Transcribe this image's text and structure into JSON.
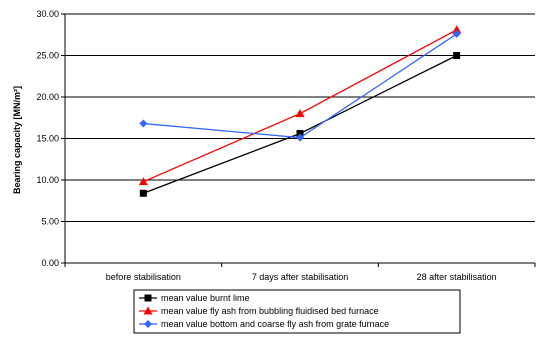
{
  "chart_data": {
    "type": "line",
    "categories": [
      "before stabilisation",
      "7 days after stabilisation",
      "28 after stabilisation"
    ],
    "series": [
      {
        "name": "mean value burnt lime",
        "values": [
          8.4,
          15.6,
          25.0
        ],
        "color": "#000000",
        "marker": "square"
      },
      {
        "name": "mean value fly ash from bubbling fluidised bed furnace",
        "values": [
          9.8,
          18.0,
          28.1
        ],
        "color": "#ff0000",
        "marker": "triangle"
      },
      {
        "name": "mean value bottom and coarse fly ash from grate furnace",
        "values": [
          16.8,
          15.1,
          27.6
        ],
        "color": "#3366ff",
        "marker": "diamond"
      }
    ],
    "ylabel": "Bearing capacity [MN/m²]",
    "xlabel": "",
    "ylim": [
      0,
      30
    ],
    "yticks": [
      "0.00",
      "5.00",
      "10.00",
      "15.00",
      "20.00",
      "25.00",
      "30.00"
    ],
    "grid": true,
    "legend": "bottom"
  }
}
